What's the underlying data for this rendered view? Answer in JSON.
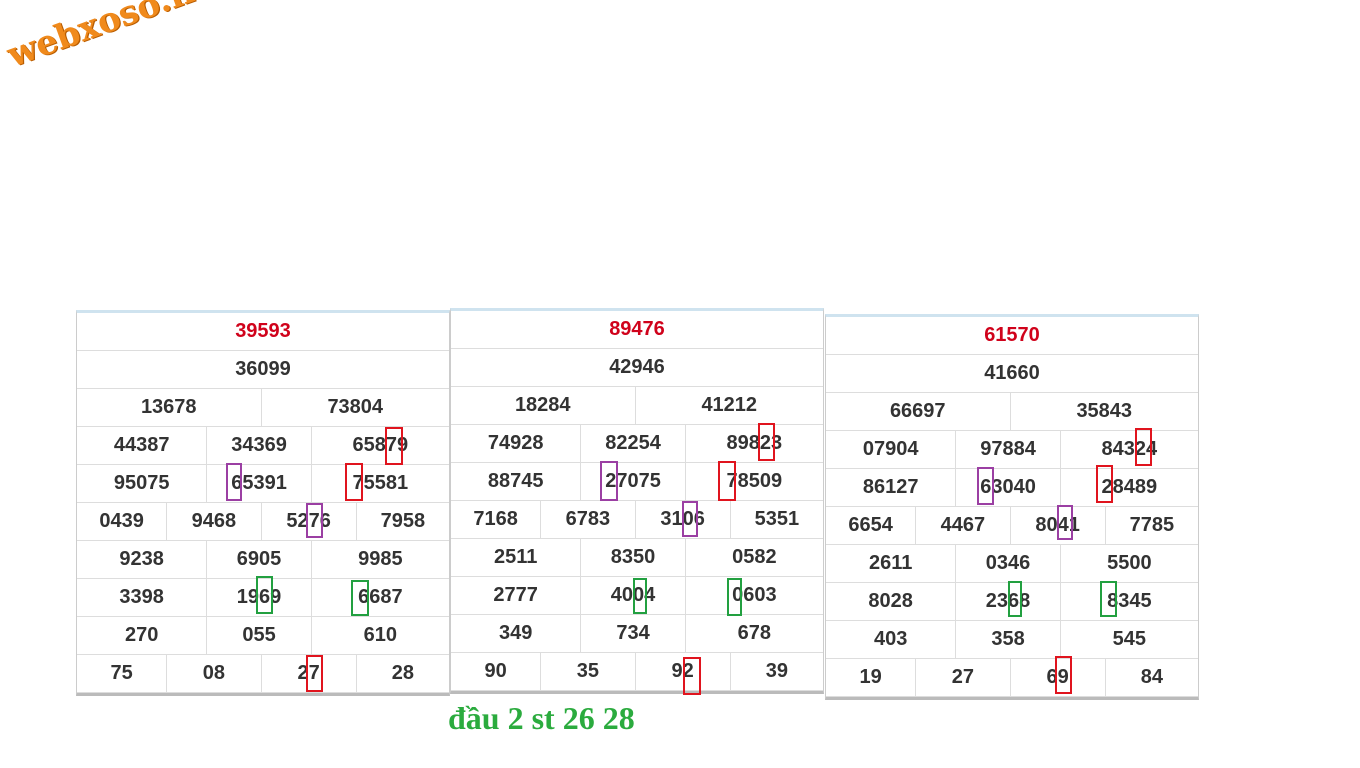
{
  "logo": "webxoso.net",
  "tables": [
    {
      "rows": [
        [
          "39593"
        ],
        [
          "36099"
        ],
        [
          "13678",
          "73804"
        ],
        [
          "44387",
          "34369",
          "65879"
        ],
        [
          "95075",
          "65391",
          "75581"
        ],
        [
          "0439",
          "9468",
          "5276",
          "7958"
        ],
        [
          "9238",
          "6905",
          "9985"
        ],
        [
          "3398",
          "1969",
          "6687"
        ],
        [
          "270",
          "055",
          "610"
        ],
        [
          "75",
          "08",
          "27",
          "28"
        ]
      ]
    },
    {
      "rows": [
        [
          "89476"
        ],
        [
          "42946"
        ],
        [
          "18284",
          "41212"
        ],
        [
          "74928",
          "82254",
          "89823"
        ],
        [
          "88745",
          "27075",
          "78509"
        ],
        [
          "7168",
          "6783",
          "3106",
          "5351"
        ],
        [
          "2511",
          "8350",
          "0582"
        ],
        [
          "2777",
          "4004",
          "0603"
        ],
        [
          "349",
          "734",
          "678"
        ],
        [
          "90",
          "35",
          "92",
          "39"
        ]
      ]
    },
    {
      "rows": [
        [
          "61570"
        ],
        [
          "41660"
        ],
        [
          "66697",
          "35843"
        ],
        [
          "07904",
          "97884",
          "84324"
        ],
        [
          "86127",
          "63040",
          "28489"
        ],
        [
          "6654",
          "4467",
          "8041",
          "7785"
        ],
        [
          "2611",
          "0346",
          "5500"
        ],
        [
          "8028",
          "2368",
          "8345"
        ],
        [
          "403",
          "358",
          "545"
        ],
        [
          "19",
          "27",
          "69",
          "84"
        ]
      ]
    }
  ],
  "caption": "đầu 2 st 26 28"
}
